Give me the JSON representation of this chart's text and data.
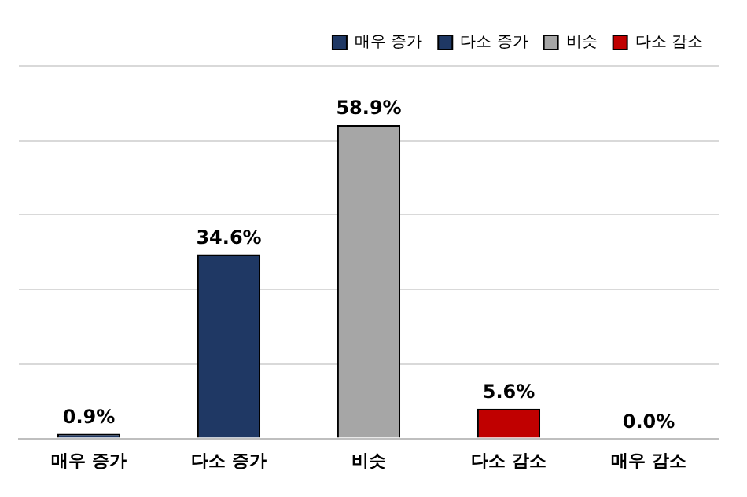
{
  "chart_data": {
    "type": "bar",
    "categories": [
      "매우 증가",
      "다소 증가",
      "비슷",
      "다소 감소",
      "매우 감소"
    ],
    "series": [
      {
        "name": "매우 증가",
        "color": "#1f3864",
        "values": [
          0.9,
          null,
          null,
          null,
          null
        ],
        "value_labels": [
          "0.9%",
          null,
          null,
          null,
          null
        ]
      },
      {
        "name": "다소 증가",
        "color": "#1f3864",
        "values": [
          null,
          34.6,
          null,
          null,
          null
        ],
        "value_labels": [
          null,
          "34.6%",
          null,
          null,
          null
        ]
      },
      {
        "name": "비슷",
        "color": "#a6a6a6",
        "values": [
          null,
          null,
          58.9,
          null,
          null
        ],
        "value_labels": [
          null,
          null,
          "58.9%",
          null,
          null
        ]
      },
      {
        "name": "다소 감소",
        "color": "#c00000",
        "values": [
          null,
          null,
          null,
          5.6,
          null
        ],
        "value_labels": [
          null,
          null,
          null,
          "5.6%",
          null
        ]
      },
      {
        "color": "#1f3864",
        "values": [
          null,
          null,
          null,
          null,
          0.0
        ],
        "value_labels": [
          null,
          null,
          null,
          null,
          "0.0%"
        ]
      }
    ],
    "ylim": [
      0,
      70
    ],
    "yticks": [
      {
        "value": 0,
        "label": null
      },
      {
        "value": 14,
        "label": null
      },
      {
        "value": 28,
        "label": null
      },
      {
        "value": 42,
        "label": null
      },
      {
        "value": 56,
        "label": null
      },
      {
        "value": 70,
        "label": null
      }
    ],
    "grid": "y",
    "legend": "top right",
    "tick_labels": "x"
  }
}
